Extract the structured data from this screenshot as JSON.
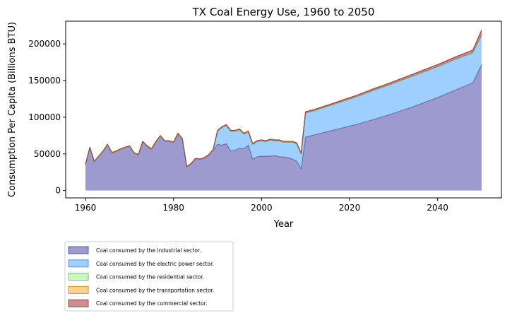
{
  "chart_data": {
    "type": "area",
    "stacked": true,
    "title": "TX Coal Energy Use, 1960 to 2050",
    "xlabel": "Year",
    "ylabel": "Consumption Per Capita (Billions BTU)",
    "xlim": [
      1955.5,
      2054.5
    ],
    "ylim": [
      -10000,
      231000
    ],
    "xticks": [
      1960,
      1980,
      2000,
      2020,
      2040
    ],
    "yticks": [
      0,
      50000,
      100000,
      150000,
      200000
    ],
    "grid": false,
    "legend_position": "below-left",
    "x": [
      1960,
      1961,
      1962,
      1963,
      1964,
      1965,
      1966,
      1967,
      1968,
      1969,
      1970,
      1971,
      1972,
      1973,
      1974,
      1975,
      1976,
      1977,
      1978,
      1979,
      1980,
      1981,
      1982,
      1983,
      1984,
      1985,
      1986,
      1987,
      1988,
      1989,
      1990,
      1991,
      1992,
      1993,
      1994,
      1995,
      1996,
      1997,
      1998,
      1999,
      2000,
      2001,
      2002,
      2003,
      2004,
      2005,
      2006,
      2007,
      2008,
      2009,
      2010,
      2012,
      2014,
      2016,
      2018,
      2020,
      2022,
      2024,
      2026,
      2028,
      2030,
      2032,
      2034,
      2036,
      2038,
      2040,
      2042,
      2044,
      2046,
      2048,
      2050
    ],
    "series": [
      {
        "name": "Coal consumed by the industrial sector.",
        "color": "#7b78be",
        "values": [
          35000,
          58000,
          39000,
          46000,
          53000,
          62000,
          51000,
          53000,
          56000,
          58000,
          60000,
          51000,
          48000,
          66000,
          60000,
          56000,
          66000,
          74000,
          67000,
          67000,
          65000,
          77000,
          70000,
          32000,
          36000,
          43000,
          42000,
          44000,
          48000,
          55000,
          63000,
          62000,
          64000,
          54000,
          55000,
          58000,
          57000,
          62000,
          43000,
          46000,
          47000,
          47000,
          47000,
          48000,
          46000,
          46000,
          45000,
          43000,
          40000,
          30000,
          73000,
          76000,
          79000,
          82000,
          85000,
          88000,
          91000,
          94500,
          98000,
          101500,
          105500,
          109500,
          113500,
          118000,
          122500,
          127000,
          132000,
          137000,
          142000,
          147000,
          172000
        ]
      },
      {
        "name": "Coal consumed by the electric power sector.",
        "color": "#7fbfff",
        "values": [
          0,
          0,
          0,
          0,
          0,
          0,
          0,
          0,
          0,
          0,
          0,
          0,
          0,
          0,
          0,
          0,
          0,
          0,
          0,
          0,
          0,
          0,
          0,
          0,
          0,
          0,
          0,
          0,
          0,
          0,
          18000,
          24000,
          25000,
          27000,
          26000,
          25000,
          20000,
          18000,
          20000,
          21000,
          21000,
          20000,
          22000,
          20000,
          22000,
          20000,
          21000,
          23000,
          24000,
          20000,
          33000,
          33000,
          34000,
          35000,
          36000,
          37000,
          38000,
          39000,
          40000,
          40500,
          41000,
          41500,
          42000,
          42000,
          42000,
          42000,
          42000,
          42000,
          41500,
          41000,
          40000
        ]
      },
      {
        "name": "Coal consumed by the residential sector.",
        "color": "#b3f5b3",
        "values": [
          0,
          0,
          0,
          0,
          0,
          0,
          0,
          0,
          0,
          0,
          0,
          0,
          0,
          0,
          0,
          0,
          0,
          0,
          0,
          0,
          0,
          0,
          0,
          0,
          0,
          0,
          0,
          0,
          0,
          0,
          0,
          0,
          0,
          0,
          0,
          0,
          0,
          0,
          0,
          0,
          0,
          0,
          0,
          0,
          0,
          0,
          0,
          0,
          0,
          0,
          0,
          0,
          0,
          0,
          0,
          0,
          0,
          0,
          0,
          0,
          0,
          0,
          0,
          0,
          0,
          0,
          0,
          0,
          0,
          0,
          0
        ]
      },
      {
        "name": "Coal consumed by the transportation sector.",
        "color": "#ffc266",
        "values": [
          0,
          0,
          0,
          0,
          0,
          0,
          0,
          0,
          0,
          0,
          0,
          0,
          0,
          0,
          0,
          0,
          0,
          0,
          0,
          0,
          0,
          0,
          0,
          0,
          0,
          0,
          0,
          0,
          0,
          0,
          0,
          0,
          0,
          0,
          0,
          0,
          0,
          0,
          0,
          0,
          0,
          0,
          0,
          0,
          0,
          0,
          0,
          0,
          0,
          0,
          0,
          0,
          0,
          0,
          0,
          0,
          0,
          0,
          0,
          0,
          0,
          0,
          0,
          0,
          0,
          0,
          0,
          0,
          0,
          0,
          1000
        ]
      },
      {
        "name": "Coal consumed by the commercial sector.",
        "color": "#b86a6a",
        "values": [
          1000,
          1000,
          1000,
          1000,
          1000,
          1000,
          1000,
          1000,
          1000,
          1000,
          1000,
          1000,
          1000,
          1000,
          1000,
          1000,
          1000,
          1000,
          1000,
          1000,
          1000,
          1000,
          1000,
          1000,
          1000,
          1000,
          1000,
          1000,
          1000,
          1000,
          1000,
          1000,
          1000,
          1000,
          1000,
          1000,
          1000,
          1000,
          1000,
          1000,
          1000,
          1000,
          1000,
          1000,
          1000,
          1000,
          1000,
          1000,
          1000,
          1000,
          1500,
          1500,
          1500,
          1500,
          1600,
          1700,
          1800,
          1900,
          2000,
          2100,
          2200,
          2300,
          2400,
          2500,
          2600,
          2700,
          2900,
          3100,
          3300,
          3500,
          6000
        ]
      }
    ]
  }
}
